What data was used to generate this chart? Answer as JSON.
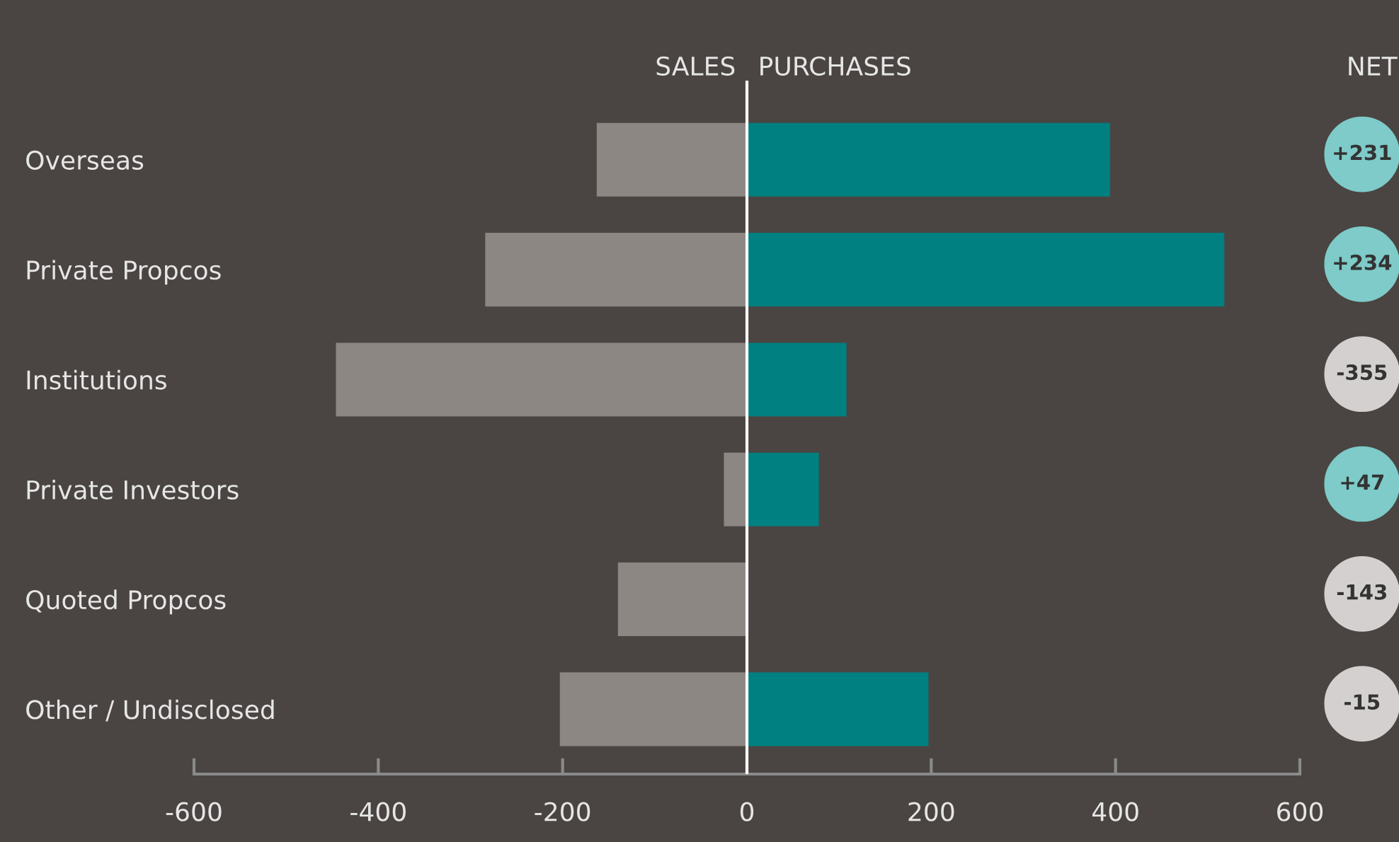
{
  "chart_data": [
    {
      "type": "bar",
      "orientation": "horizontal",
      "stacked": true,
      "categories": [
        "Overseas",
        "Private Propcos",
        "Institutions",
        "Private Investors",
        "Quoted Propcos",
        "Other / Undisclosed"
      ],
      "series": [
        {
          "name": "SALES",
          "color": "#8c8782",
          "values": [
            -163,
            -284,
            -446,
            -25,
            -140,
            -203
          ]
        },
        {
          "name": "PURCHASES",
          "color": "#008080",
          "values": [
            394,
            518,
            108,
            78,
            0,
            197
          ]
        }
      ],
      "xlim": [
        -600,
        600
      ],
      "xticks": [
        -600,
        -400,
        -200,
        0,
        200,
        400,
        600
      ],
      "grid": false,
      "legend": "top",
      "ref_lines": [
        {
          "axis": "x",
          "value": 0,
          "color": "#ffffff"
        }
      ]
    },
    {
      "type": "other",
      "title": "NET",
      "annotations": [
        "+231",
        "+234",
        "-355",
        "+47",
        "-143",
        "-15"
      ],
      "colors": [
        "#7ecbc9",
        "#7ecbc9",
        "#d3d0cf",
        "#7ecbc9",
        "#d3d0cf",
        "#d3d0cf"
      ]
    }
  ]
}
